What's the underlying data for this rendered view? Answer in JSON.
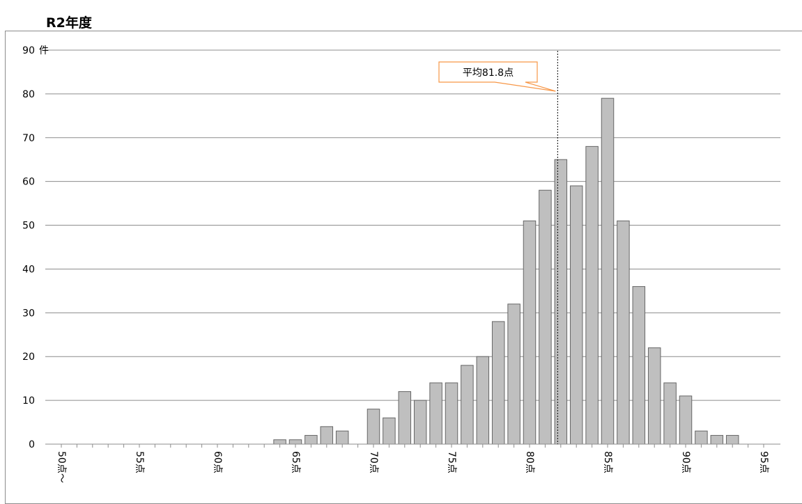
{
  "page": {
    "heading": "R2年度"
  },
  "chart_data": {
    "type": "bar",
    "title": "",
    "xlabel": "",
    "ylabel": "件",
    "ylim": [
      0,
      90
    ],
    "y_ticks": [
      0,
      10,
      20,
      30,
      40,
      50,
      60,
      70,
      80,
      90
    ],
    "grid": true,
    "bar_color": "#bfbfbf",
    "bar_edge_color": "#666666",
    "mean_line_color": "#000000",
    "callout_border_color": "#f79646",
    "categories": [
      50,
      51,
      52,
      53,
      54,
      55,
      56,
      57,
      58,
      59,
      60,
      61,
      62,
      63,
      64,
      65,
      66,
      67,
      68,
      69,
      70,
      71,
      72,
      73,
      74,
      75,
      76,
      77,
      78,
      79,
      80,
      81,
      82,
      83,
      84,
      85,
      86,
      87,
      88,
      89,
      90,
      91,
      92,
      93,
      94,
      95
    ],
    "values": [
      0,
      0,
      0,
      0,
      0,
      0,
      0,
      0,
      0,
      0,
      0,
      0,
      0,
      0,
      1,
      1,
      2,
      4,
      3,
      0,
      8,
      6,
      12,
      10,
      14,
      14,
      18,
      20,
      28,
      32,
      51,
      58,
      65,
      59,
      68,
      79,
      51,
      36,
      22,
      14,
      11,
      3,
      2,
      2,
      0,
      0
    ],
    "x_tick_labels": [
      {
        "x": 50,
        "label": "50点～"
      },
      {
        "x": 55,
        "label": "55点"
      },
      {
        "x": 60,
        "label": "60点"
      },
      {
        "x": 65,
        "label": "65点"
      },
      {
        "x": 70,
        "label": "70点"
      },
      {
        "x": 75,
        "label": "75点"
      },
      {
        "x": 80,
        "label": "80点"
      },
      {
        "x": 85,
        "label": "85点"
      },
      {
        "x": 90,
        "label": "90点"
      },
      {
        "x": 95,
        "label": "95点"
      }
    ],
    "mean": 81.8,
    "mean_label": "平均81.8点"
  }
}
